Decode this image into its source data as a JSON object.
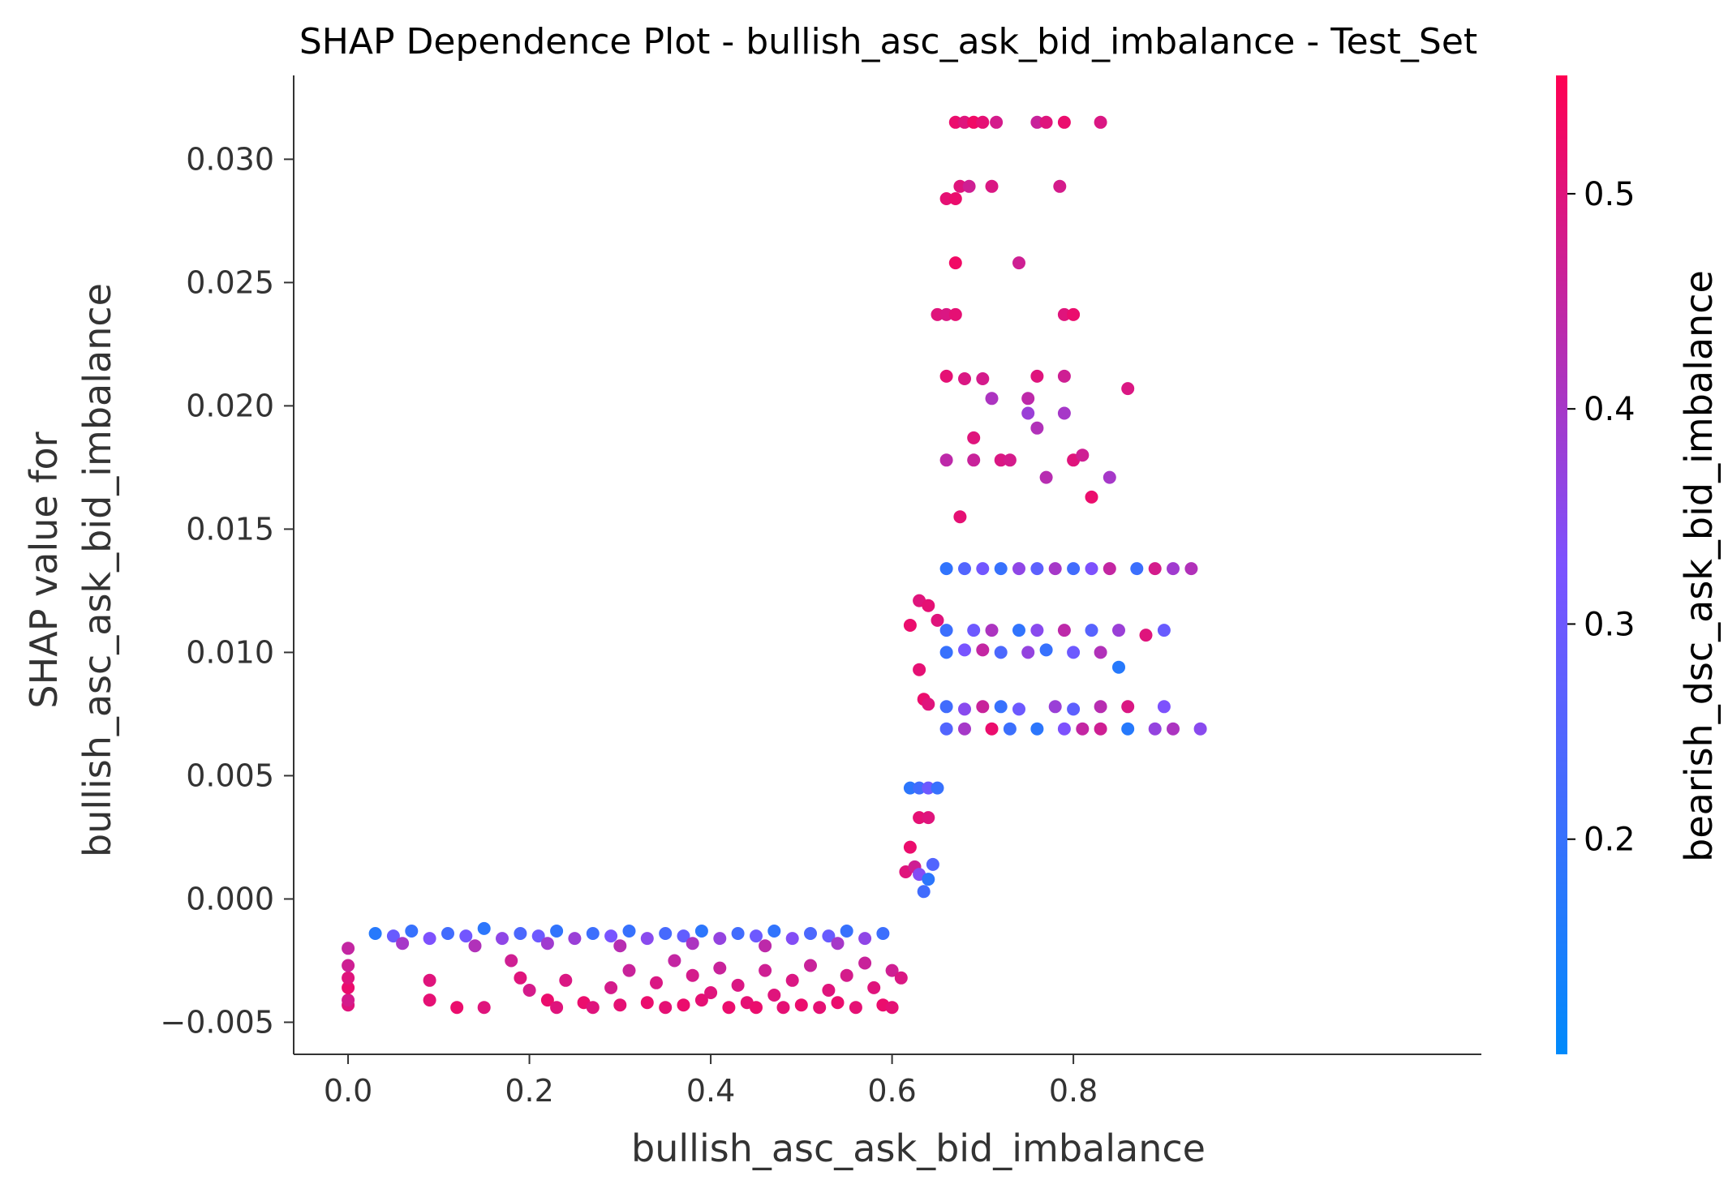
{
  "chart_data": {
    "type": "scatter",
    "title": "SHAP Dependence Plot - bullish_asc_ask_bid_imbalance - Test_Set",
    "xlabel": "bullish_asc_ask_bid_imbalance",
    "ylabel_line1": "SHAP value for",
    "ylabel_line2": "bullish_asc_ask_bid_imbalance",
    "xlim": [
      -0.06,
      1.25
    ],
    "ylim": [
      -0.0063,
      0.0334
    ],
    "xticks": [
      0.0,
      0.2,
      0.4,
      0.6,
      0.8
    ],
    "xtick_labels": [
      "0.0",
      "0.2",
      "0.4",
      "0.6",
      "0.8"
    ],
    "yticks": [
      -0.005,
      0.0,
      0.005,
      0.01,
      0.015,
      0.02,
      0.025,
      0.03
    ],
    "ytick_labels": [
      "−0.005",
      "0.000",
      "0.005",
      "0.010",
      "0.015",
      "0.020",
      "0.025",
      "0.030"
    ],
    "grid": false,
    "colorbar": {
      "label": "bearish_dsc_ask_bid_imbalance",
      "range": [
        0.1,
        0.555
      ],
      "ticks": [
        0.2,
        0.3,
        0.4,
        0.5
      ],
      "tick_labels": [
        "0.2",
        "0.3",
        "0.4",
        "0.5"
      ],
      "color_low": "#008afb",
      "color_mid": "#7c52ff",
      "color_high": "#ff0052"
    },
    "series": [
      {
        "points": [
          [
            0.03,
            -0.0014,
            0.17
          ],
          [
            0.05,
            -0.0015,
            0.29
          ],
          [
            0.07,
            -0.0013,
            0.2
          ],
          [
            0.09,
            -0.0016,
            0.33
          ],
          [
            0.11,
            -0.0014,
            0.22
          ],
          [
            0.13,
            -0.0015,
            0.31
          ],
          [
            0.15,
            -0.0012,
            0.18
          ],
          [
            0.17,
            -0.0016,
            0.36
          ],
          [
            0.19,
            -0.0014,
            0.24
          ],
          [
            0.21,
            -0.0015,
            0.3
          ],
          [
            0.23,
            -0.0013,
            0.19
          ],
          [
            0.25,
            -0.0016,
            0.38
          ],
          [
            0.27,
            -0.0014,
            0.21
          ],
          [
            0.29,
            -0.0015,
            0.32
          ],
          [
            0.31,
            -0.0013,
            0.2
          ],
          [
            0.33,
            -0.0016,
            0.35
          ],
          [
            0.35,
            -0.0014,
            0.23
          ],
          [
            0.37,
            -0.0015,
            0.28
          ],
          [
            0.39,
            -0.0013,
            0.18
          ],
          [
            0.41,
            -0.0016,
            0.37
          ],
          [
            0.43,
            -0.0014,
            0.22
          ],
          [
            0.45,
            -0.0015,
            0.3
          ],
          [
            0.47,
            -0.0013,
            0.19
          ],
          [
            0.49,
            -0.0016,
            0.34
          ],
          [
            0.51,
            -0.0014,
            0.24
          ],
          [
            0.53,
            -0.0015,
            0.29
          ],
          [
            0.55,
            -0.0013,
            0.2
          ],
          [
            0.57,
            -0.0016,
            0.36
          ],
          [
            0.59,
            -0.0014,
            0.21
          ],
          [
            0.06,
            -0.0018,
            0.4
          ],
          [
            0.14,
            -0.0019,
            0.42
          ],
          [
            0.22,
            -0.0018,
            0.39
          ],
          [
            0.3,
            -0.0019,
            0.43
          ],
          [
            0.38,
            -0.0018,
            0.41
          ],
          [
            0.46,
            -0.0019,
            0.44
          ],
          [
            0.54,
            -0.0018,
            0.4
          ],
          [
            0.0,
            -0.0043,
            0.5
          ],
          [
            0.0,
            -0.0041,
            0.48
          ],
          [
            0.0,
            -0.0036,
            0.52
          ],
          [
            0.0,
            -0.0032,
            0.5
          ],
          [
            0.0,
            -0.0027,
            0.47
          ],
          [
            0.0,
            -0.002,
            0.45
          ],
          [
            0.09,
            -0.0033,
            0.5
          ],
          [
            0.09,
            -0.0041,
            0.51
          ],
          [
            0.12,
            -0.0044,
            0.52
          ],
          [
            0.15,
            -0.0044,
            0.5
          ],
          [
            0.18,
            -0.0025,
            0.47
          ],
          [
            0.19,
            -0.0032,
            0.5
          ],
          [
            0.2,
            -0.0037,
            0.48
          ],
          [
            0.22,
            -0.0041,
            0.52
          ],
          [
            0.23,
            -0.0044,
            0.5
          ],
          [
            0.24,
            -0.0033,
            0.49
          ],
          [
            0.26,
            -0.0042,
            0.52
          ],
          [
            0.27,
            -0.0044,
            0.5
          ],
          [
            0.29,
            -0.0036,
            0.48
          ],
          [
            0.3,
            -0.0043,
            0.51
          ],
          [
            0.31,
            -0.0029,
            0.46
          ],
          [
            0.33,
            -0.0042,
            0.52
          ],
          [
            0.34,
            -0.0034,
            0.49
          ],
          [
            0.35,
            -0.0044,
            0.51
          ],
          [
            0.36,
            -0.0025,
            0.45
          ],
          [
            0.37,
            -0.0043,
            0.52
          ],
          [
            0.38,
            -0.0031,
            0.48
          ],
          [
            0.39,
            -0.0041,
            0.51
          ],
          [
            0.4,
            -0.0038,
            0.5
          ],
          [
            0.41,
            -0.0028,
            0.46
          ],
          [
            0.42,
            -0.0044,
            0.52
          ],
          [
            0.43,
            -0.0035,
            0.49
          ],
          [
            0.44,
            -0.0042,
            0.51
          ],
          [
            0.45,
            -0.0044,
            0.52
          ],
          [
            0.46,
            -0.0029,
            0.47
          ],
          [
            0.47,
            -0.0039,
            0.5
          ],
          [
            0.48,
            -0.0044,
            0.51
          ],
          [
            0.49,
            -0.0033,
            0.49
          ],
          [
            0.5,
            -0.0043,
            0.52
          ],
          [
            0.51,
            -0.0027,
            0.46
          ],
          [
            0.52,
            -0.0044,
            0.51
          ],
          [
            0.53,
            -0.0037,
            0.5
          ],
          [
            0.54,
            -0.0042,
            0.52
          ],
          [
            0.55,
            -0.0031,
            0.48
          ],
          [
            0.56,
            -0.0044,
            0.51
          ],
          [
            0.57,
            -0.0026,
            0.46
          ],
          [
            0.58,
            -0.0036,
            0.5
          ],
          [
            0.59,
            -0.0043,
            0.52
          ],
          [
            0.6,
            -0.0044,
            0.51
          ],
          [
            0.6,
            -0.0029,
            0.47
          ],
          [
            0.61,
            -0.0032,
            0.49
          ],
          [
            0.615,
            0.0011,
            0.5
          ],
          [
            0.62,
            0.0021,
            0.52
          ],
          [
            0.625,
            0.0013,
            0.47
          ],
          [
            0.63,
            0.001,
            0.34
          ],
          [
            0.635,
            0.0003,
            0.22
          ],
          [
            0.64,
            0.0008,
            0.18
          ],
          [
            0.645,
            0.0014,
            0.25
          ],
          [
            0.63,
            0.0033,
            0.51
          ],
          [
            0.64,
            0.0033,
            0.5
          ],
          [
            0.62,
            0.0045,
            0.18
          ],
          [
            0.63,
            0.0045,
            0.22
          ],
          [
            0.64,
            0.0045,
            0.3
          ],
          [
            0.65,
            0.0045,
            0.2
          ],
          [
            0.62,
            0.0111,
            0.52
          ],
          [
            0.63,
            0.0121,
            0.5
          ],
          [
            0.64,
            0.0119,
            0.51
          ],
          [
            0.65,
            0.0113,
            0.5
          ],
          [
            0.63,
            0.0093,
            0.51
          ],
          [
            0.635,
            0.0081,
            0.52
          ],
          [
            0.64,
            0.0079,
            0.5
          ],
          [
            0.66,
            0.0134,
            0.19
          ],
          [
            0.68,
            0.0134,
            0.25
          ],
          [
            0.7,
            0.0134,
            0.31
          ],
          [
            0.72,
            0.0134,
            0.2
          ],
          [
            0.74,
            0.0134,
            0.36
          ],
          [
            0.76,
            0.0134,
            0.27
          ],
          [
            0.78,
            0.0134,
            0.4
          ],
          [
            0.8,
            0.0134,
            0.22
          ],
          [
            0.82,
            0.0134,
            0.33
          ],
          [
            0.84,
            0.0134,
            0.45
          ],
          [
            0.87,
            0.0134,
            0.21
          ],
          [
            0.89,
            0.0134,
            0.48
          ],
          [
            0.91,
            0.0134,
            0.39
          ],
          [
            0.93,
            0.0134,
            0.42
          ],
          [
            0.66,
            0.0109,
            0.21
          ],
          [
            0.69,
            0.0109,
            0.3
          ],
          [
            0.71,
            0.0109,
            0.41
          ],
          [
            0.74,
            0.0109,
            0.19
          ],
          [
            0.76,
            0.0109,
            0.35
          ],
          [
            0.79,
            0.0109,
            0.44
          ],
          [
            0.82,
            0.0109,
            0.26
          ],
          [
            0.85,
            0.0109,
            0.38
          ],
          [
            0.88,
            0.0107,
            0.5
          ],
          [
            0.9,
            0.0109,
            0.29
          ],
          [
            0.66,
            0.01,
            0.2
          ],
          [
            0.68,
            0.0101,
            0.32
          ],
          [
            0.7,
            0.0101,
            0.45
          ],
          [
            0.72,
            0.01,
            0.24
          ],
          [
            0.75,
            0.01,
            0.37
          ],
          [
            0.77,
            0.0101,
            0.2
          ],
          [
            0.8,
            0.01,
            0.3
          ],
          [
            0.83,
            0.01,
            0.42
          ],
          [
            0.85,
            0.0094,
            0.17
          ],
          [
            0.66,
            0.0078,
            0.22
          ],
          [
            0.68,
            0.0077,
            0.35
          ],
          [
            0.7,
            0.0078,
            0.46
          ],
          [
            0.72,
            0.0078,
            0.2
          ],
          [
            0.74,
            0.0077,
            0.3
          ],
          [
            0.78,
            0.0078,
            0.38
          ],
          [
            0.8,
            0.0077,
            0.27
          ],
          [
            0.83,
            0.0078,
            0.43
          ],
          [
            0.86,
            0.0078,
            0.49
          ],
          [
            0.9,
            0.0078,
            0.33
          ],
          [
            0.66,
            0.0069,
            0.25
          ],
          [
            0.68,
            0.0069,
            0.4
          ],
          [
            0.71,
            0.0069,
            0.52
          ],
          [
            0.73,
            0.0069,
            0.21
          ],
          [
            0.76,
            0.0069,
            0.18
          ],
          [
            0.79,
            0.0069,
            0.33
          ],
          [
            0.81,
            0.0069,
            0.45
          ],
          [
            0.83,
            0.0069,
            0.47
          ],
          [
            0.86,
            0.0069,
            0.17
          ],
          [
            0.89,
            0.0069,
            0.37
          ],
          [
            0.91,
            0.0069,
            0.41
          ],
          [
            0.94,
            0.0069,
            0.35
          ],
          [
            0.67,
            0.0315,
            0.52
          ],
          [
            0.68,
            0.0315,
            0.5
          ],
          [
            0.69,
            0.0315,
            0.53
          ],
          [
            0.7,
            0.0315,
            0.51
          ],
          [
            0.715,
            0.0315,
            0.48
          ],
          [
            0.76,
            0.0315,
            0.46
          ],
          [
            0.77,
            0.0315,
            0.5
          ],
          [
            0.79,
            0.0315,
            0.52
          ],
          [
            0.83,
            0.0315,
            0.49
          ],
          [
            0.66,
            0.0284,
            0.51
          ],
          [
            0.67,
            0.0284,
            0.52
          ],
          [
            0.675,
            0.0289,
            0.5
          ],
          [
            0.685,
            0.0289,
            0.47
          ],
          [
            0.71,
            0.0289,
            0.49
          ],
          [
            0.785,
            0.0289,
            0.48
          ],
          [
            0.67,
            0.0258,
            0.53
          ],
          [
            0.74,
            0.0258,
            0.47
          ],
          [
            0.65,
            0.0237,
            0.5
          ],
          [
            0.66,
            0.0237,
            0.49
          ],
          [
            0.67,
            0.0237,
            0.51
          ],
          [
            0.79,
            0.0237,
            0.5
          ],
          [
            0.8,
            0.0237,
            0.52
          ],
          [
            0.66,
            0.0212,
            0.51
          ],
          [
            0.68,
            0.0211,
            0.49
          ],
          [
            0.7,
            0.0211,
            0.48
          ],
          [
            0.71,
            0.0203,
            0.41
          ],
          [
            0.75,
            0.0203,
            0.44
          ],
          [
            0.76,
            0.0212,
            0.5
          ],
          [
            0.79,
            0.0212,
            0.47
          ],
          [
            0.86,
            0.0207,
            0.49
          ],
          [
            0.75,
            0.0197,
            0.38
          ],
          [
            0.76,
            0.0191,
            0.42
          ],
          [
            0.79,
            0.0197,
            0.4
          ],
          [
            0.69,
            0.0187,
            0.5
          ],
          [
            0.66,
            0.0178,
            0.44
          ],
          [
            0.69,
            0.0178,
            0.46
          ],
          [
            0.72,
            0.0178,
            0.49
          ],
          [
            0.73,
            0.0178,
            0.48
          ],
          [
            0.8,
            0.0178,
            0.5
          ],
          [
            0.81,
            0.018,
            0.47
          ],
          [
            0.77,
            0.0171,
            0.43
          ],
          [
            0.84,
            0.0171,
            0.4
          ],
          [
            0.82,
            0.0163,
            0.52
          ],
          [
            0.675,
            0.0155,
            0.51
          ]
        ]
      }
    ]
  }
}
